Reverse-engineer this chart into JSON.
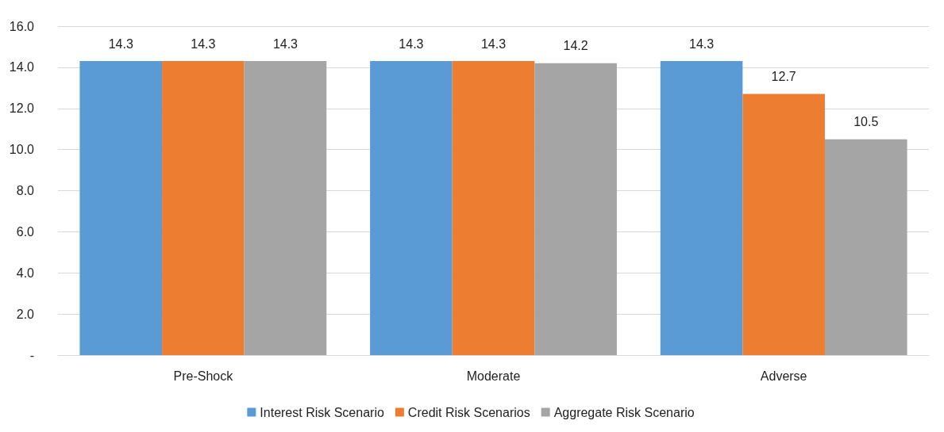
{
  "chart_data": {
    "type": "bar",
    "categories": [
      "Pre-Shock",
      "Moderate",
      "Adverse"
    ],
    "series": [
      {
        "name": "Interest Risk Scenario",
        "color": "#5b9bd5",
        "values": [
          14.3,
          14.3,
          14.3
        ]
      },
      {
        "name": "Credit Risk Scenarios",
        "color": "#ed7d31",
        "values": [
          14.3,
          14.3,
          12.7
        ]
      },
      {
        "name": "Aggregate Risk Scenario",
        "color": "#a5a5a5",
        "values": [
          14.3,
          14.2,
          10.5
        ]
      }
    ],
    "ylim": [
      0,
      16
    ],
    "yticks": [
      {
        "value": 0,
        "label": "-"
      },
      {
        "value": 2,
        "label": "2.0"
      },
      {
        "value": 4,
        "label": "4.0"
      },
      {
        "value": 6,
        "label": "6.0"
      },
      {
        "value": 8,
        "label": "8.0"
      },
      {
        "value": 10,
        "label": "10.0"
      },
      {
        "value": 12,
        "label": "12.0"
      },
      {
        "value": 14,
        "label": "14.0"
      },
      {
        "value": 16,
        "label": "16.0"
      }
    ],
    "grid": "y",
    "legend": "bottom",
    "data_labels": true
  }
}
